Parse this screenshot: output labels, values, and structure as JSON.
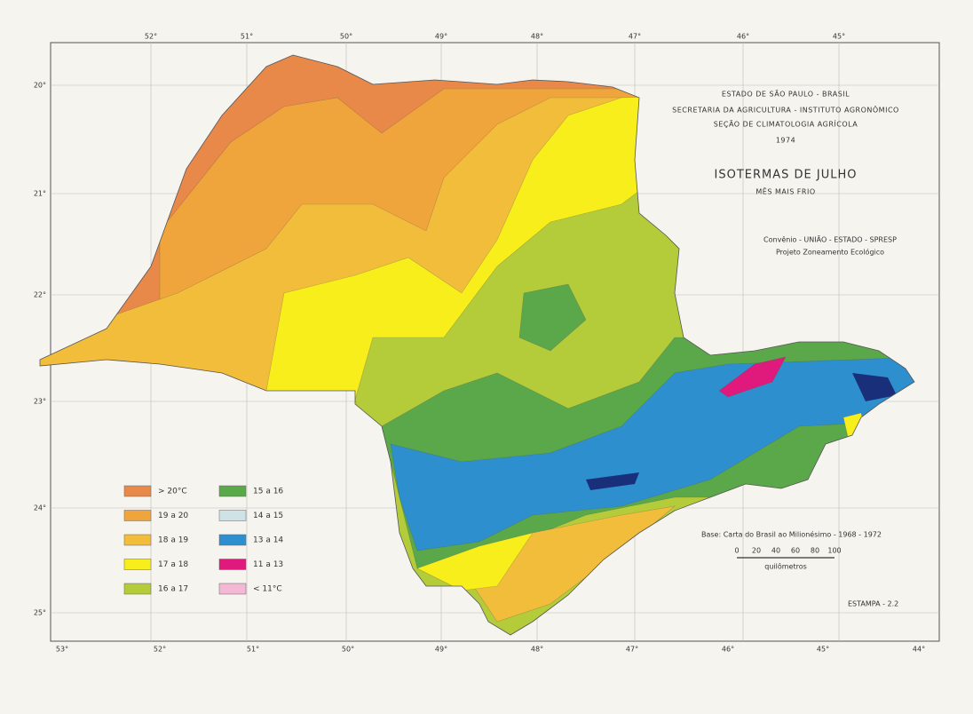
{
  "header": {
    "lines": [
      "ESTADO DE SÃO PAULO - BRASIL",
      "SECRETARIA DA AGRICULTURA - INSTITUTO AGRONÔMICO",
      "SEÇÃO DE CLIMATOLOGIA AGRÍCOLA",
      "1974"
    ],
    "title": "ISOTERMAS DE JULHO",
    "subtitle": "MÊS MAIS FRIO",
    "credits": [
      "Convênio - UNIÃO - ESTADO - SPRESP",
      "Projeto Zoneamento Ecológico"
    ]
  },
  "legend": [
    {
      "label": "> 20°C",
      "color": "#e8894a"
    },
    {
      "label": "19 a 20",
      "color": "#f0a53c"
    },
    {
      "label": "18 a 19",
      "color": "#f3bd3c"
    },
    {
      "label": "17 a 18",
      "color": "#f7ee1c"
    },
    {
      "label": "16 a 17",
      "color": "#b4cc3a"
    },
    {
      "label": "15 a 16",
      "color": "#5aa84a"
    },
    {
      "label": "14 a 15",
      "color": "#cfe3e6"
    },
    {
      "label": "13 a 14",
      "color": "#2e8fcf"
    },
    {
      "label": "11 a 13",
      "color": "#e0197d"
    },
    {
      "label": "< 11°C",
      "color": "#f4b8d4"
    }
  ],
  "footer": {
    "base": "Base: Carta do Brasil ao Milionésimo - 1968 - 1972",
    "scale_ticks": [
      "0",
      "20",
      "40",
      "60",
      "80",
      "100"
    ],
    "scale_unit": "quilômetros",
    "plate": "ESTAMPA - 2.2"
  },
  "longitudes_top": [
    "52°",
    "51°",
    "50°",
    "49°",
    "48°",
    "47°",
    "46°",
    "45°"
  ],
  "longitudes_bottom": [
    "53°",
    "52°",
    "51°",
    "50°",
    "49°",
    "48°",
    "47°",
    "46°",
    "45°",
    "44°"
  ],
  "latitudes": [
    "20°",
    "21°",
    "22°",
    "23°",
    "24°",
    "25°"
  ]
}
